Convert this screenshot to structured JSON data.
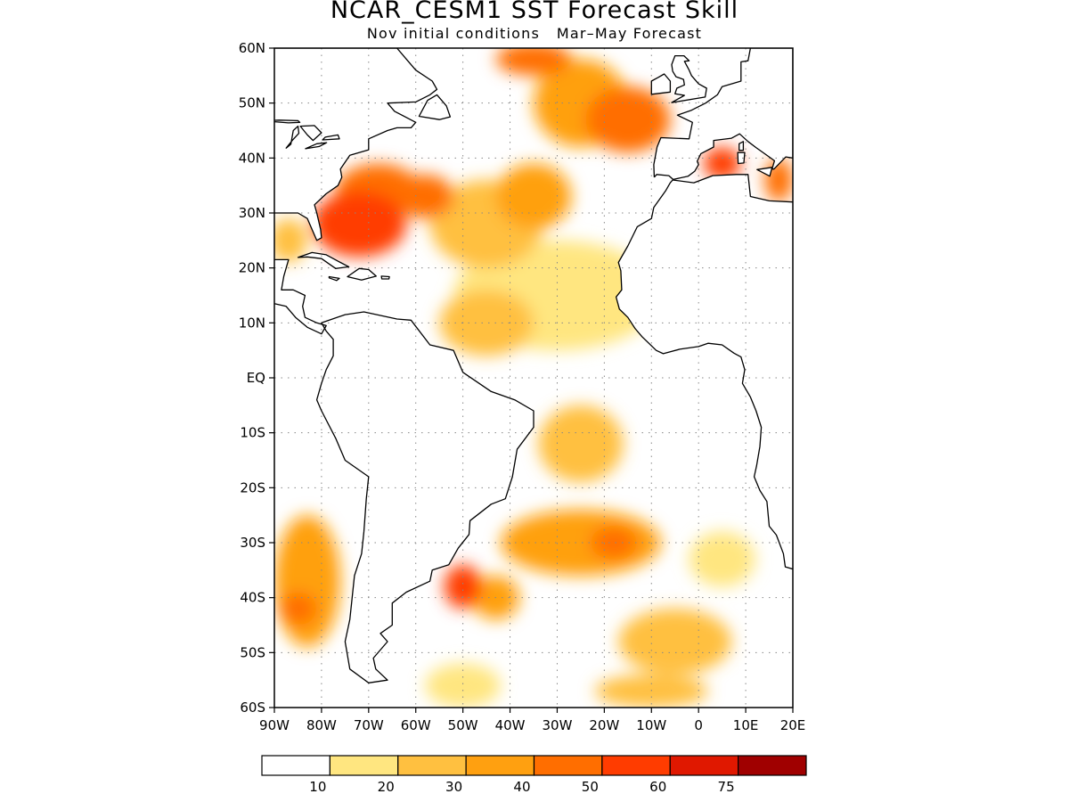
{
  "title": "NCAR_CESM1 SST Forecast Skill",
  "subtitle": "Nov initial conditions   Mar–May Forecast",
  "map": {
    "projection": "lat-lon",
    "lon_range": [
      -90,
      20
    ],
    "lat_range": [
      -60,
      60
    ],
    "lat_labels": [
      "60N",
      "50N",
      "40N",
      "30N",
      "20N",
      "10N",
      "EQ",
      "10S",
      "20S",
      "30S",
      "40S",
      "50S",
      "60S"
    ],
    "lon_labels": [
      "90W",
      "80W",
      "70W",
      "60W",
      "50W",
      "40W",
      "30W",
      "20W",
      "10W",
      "0",
      "10E",
      "20E"
    ],
    "grid": "dotted",
    "land_outline_color": "#000000"
  },
  "colorbar": {
    "levels": [
      "10",
      "20",
      "30",
      "40",
      "50",
      "60",
      "75"
    ],
    "colors": [
      "#ffffff",
      "#ffe680",
      "#ffc040",
      "#ffa010",
      "#ff6e00",
      "#ff3c00",
      "#e01800",
      "#a00000"
    ]
  },
  "chart_data": {
    "type": "heatmap",
    "title": "NCAR_CESM1 SST Forecast Skill",
    "subtitle": "Nov initial conditions   Mar–May Forecast",
    "x_range": [
      -90,
      20
    ],
    "y_range": [
      -60,
      60
    ],
    "contour_levels": [
      10,
      20,
      30,
      40,
      50,
      60,
      75
    ],
    "skill_regions": [
      {
        "lon": -72,
        "lat": 28,
        "lon_radius": 10,
        "lat_radius": 6,
        "value": 55
      },
      {
        "lon": -68,
        "lat": 34,
        "lon_radius": 9,
        "lat_radius": 5,
        "value": 48
      },
      {
        "lon": -58,
        "lat": 33,
        "lon_radius": 6,
        "lat_radius": 4,
        "value": 45
      },
      {
        "lon": -45,
        "lat": 28,
        "lon_radius": 12,
        "lat_radius": 8,
        "value": 28
      },
      {
        "lon": -35,
        "lat": 33,
        "lon_radius": 8,
        "lat_radius": 6,
        "value": 35
      },
      {
        "lon": -15,
        "lat": 47,
        "lon_radius": 9,
        "lat_radius": 6,
        "value": 42
      },
      {
        "lon": -25,
        "lat": 50,
        "lon_radius": 10,
        "lat_radius": 8,
        "value": 30
      },
      {
        "lon": -35,
        "lat": 58,
        "lon_radius": 8,
        "lat_radius": 3,
        "value": 45
      },
      {
        "lon": 5,
        "lat": 39,
        "lon_radius": 4,
        "lat_radius": 3,
        "value": 50
      },
      {
        "lon": 17,
        "lat": 36,
        "lon_radius": 3,
        "lat_radius": 4,
        "value": 40
      },
      {
        "lon": -30,
        "lat": 15,
        "lon_radius": 22,
        "lat_radius": 10,
        "value": 15
      },
      {
        "lon": -45,
        "lat": 10,
        "lon_radius": 10,
        "lat_radius": 6,
        "value": 25
      },
      {
        "lon": -25,
        "lat": -12,
        "lon_radius": 9,
        "lat_radius": 7,
        "value": 25
      },
      {
        "lon": -25,
        "lat": -30,
        "lon_radius": 17,
        "lat_radius": 6,
        "value": 30
      },
      {
        "lon": -18,
        "lat": -30,
        "lon_radius": 5,
        "lat_radius": 3,
        "value": 45
      },
      {
        "lon": -50,
        "lat": -38,
        "lon_radius": 4,
        "lat_radius": 4,
        "value": 55
      },
      {
        "lon": -43,
        "lat": -40,
        "lon_radius": 5,
        "lat_radius": 4,
        "value": 35
      },
      {
        "lon": -83,
        "lat": -37,
        "lon_radius": 7,
        "lat_radius": 12,
        "value": 30
      },
      {
        "lon": -85,
        "lat": -42,
        "lon_radius": 4,
        "lat_radius": 3,
        "value": 45
      },
      {
        "lon": -5,
        "lat": -48,
        "lon_radius": 12,
        "lat_radius": 6,
        "value": 25
      },
      {
        "lon": -10,
        "lat": -57,
        "lon_radius": 12,
        "lat_radius": 3,
        "value": 22
      },
      {
        "lon": 5,
        "lat": -33,
        "lon_radius": 7,
        "lat_radius": 5,
        "value": 15
      },
      {
        "lon": -50,
        "lat": -56,
        "lon_radius": 8,
        "lat_radius": 4,
        "value": 15
      },
      {
        "lon": -87,
        "lat": 25,
        "lon_radius": 4,
        "lat_radius": 4,
        "value": 25
      }
    ]
  }
}
